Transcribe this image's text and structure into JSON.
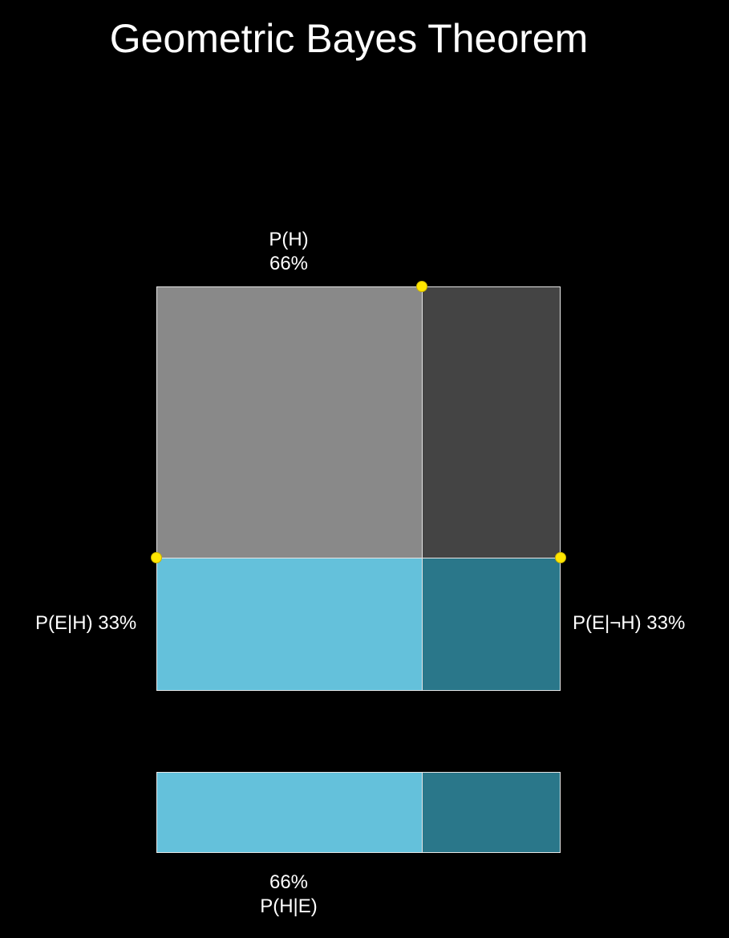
{
  "title": "Geometric Bayes Theorem",
  "prior": {
    "name": "P(H)",
    "value_text": "66%",
    "fraction": 0.656
  },
  "likelihood_h": {
    "label": "P(E|H) 33%",
    "fraction": 0.33
  },
  "likelihood_not_h": {
    "label": "P(E|¬H) 33%",
    "fraction": 0.33
  },
  "posterior": {
    "name": "P(H|E)",
    "value_text": "66%",
    "fraction": 0.656
  },
  "colors": {
    "background": "#000000",
    "h_region": "#898989",
    "not_h_region": "#444444",
    "evidence_h": "#64c1db",
    "evidence_not_h": "#2a778a",
    "border": "#e6e6e6",
    "handle_fill": "#ffe600",
    "handle_stroke": "#c9b200"
  }
}
